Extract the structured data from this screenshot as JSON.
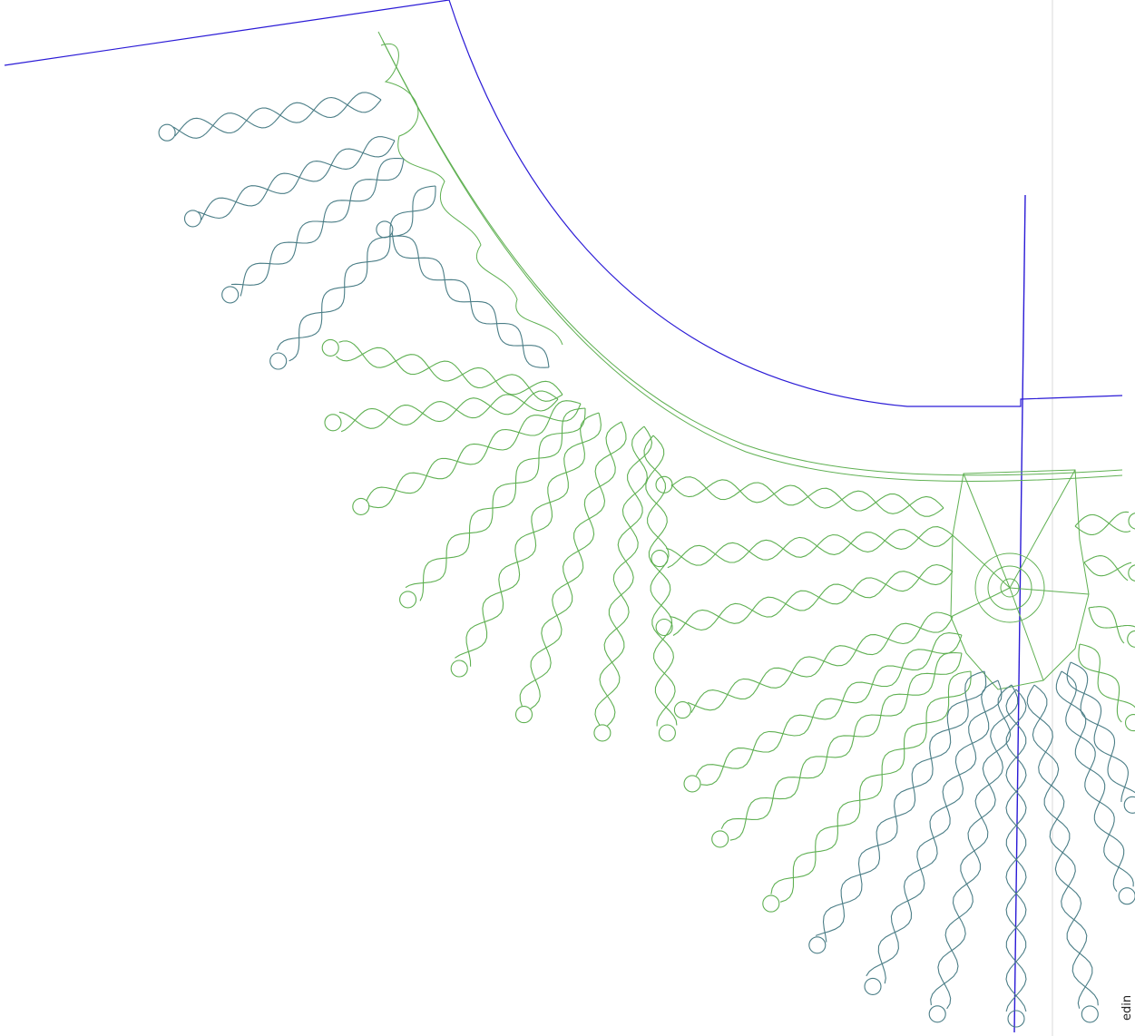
{
  "side_label": "edin"
}
